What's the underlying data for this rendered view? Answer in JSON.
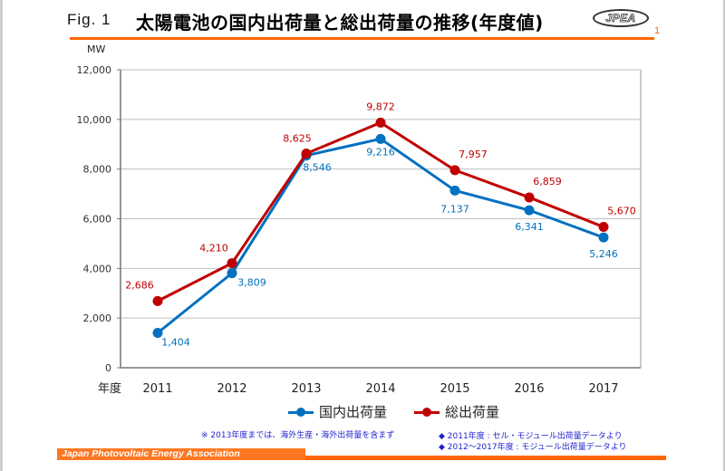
{
  "header": {
    "fig_label": "Fig. 1",
    "title": "太陽電池の国内出荷量と総出荷量の推移(年度値)",
    "logo_text": "JPEA",
    "page_number": "1"
  },
  "colors": {
    "accent": "#ff6600",
    "domestic": "#0070c0",
    "total": "#c00000",
    "note_text": "#1f1fd0"
  },
  "chart_data": {
    "type": "line",
    "title": "太陽電池の国内出荷量と総出荷量の推移(年度値)",
    "xlabel": "年度",
    "ylabel": "MW",
    "categories": [
      "2011",
      "2012",
      "2013",
      "2014",
      "2015",
      "2016",
      "2017"
    ],
    "ylim": [
      0,
      12000
    ],
    "yticks": [
      0,
      2000,
      4000,
      6000,
      8000,
      10000,
      12000
    ],
    "ytick_labels": [
      "0",
      "2,000",
      "4,000",
      "6,000",
      "8,000",
      "10,000",
      "12,000"
    ],
    "grid": true,
    "legend_position": "bottom",
    "series": [
      {
        "name": "国内出荷量",
        "color": "#0070c0",
        "values": [
          1404,
          3809,
          8546,
          9216,
          7137,
          6341,
          5246
        ],
        "labels": [
          "1,404",
          "3,809",
          "8,546",
          "9,216",
          "7,137",
          "6,341",
          "5,246"
        ]
      },
      {
        "name": "総出荷量",
        "color": "#c00000",
        "values": [
          2686,
          4210,
          8625,
          9872,
          7957,
          6859,
          5670
        ],
        "labels": [
          "2,686",
          "4,210",
          "8,625",
          "9,872",
          "7,957",
          "6,859",
          "5,670"
        ]
      }
    ]
  },
  "legend": {
    "domestic": "国内出荷量",
    "total": "総出荷量"
  },
  "notes": {
    "main": "※ 2013年度までは、海外生産・海外出荷量を含まず",
    "source1": "◆ 2011年度 : セル・モジュール出荷量データより",
    "source2": "◆ 2012～2017年度 : モジュール出荷量データより"
  },
  "footer": {
    "organization": "Japan Photovoltaic Energy Association"
  }
}
